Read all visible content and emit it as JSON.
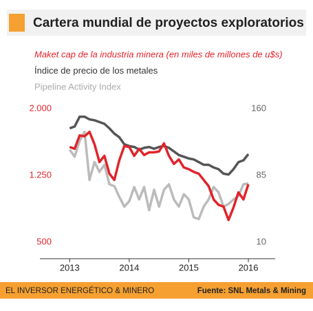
{
  "chart_data": {
    "type": "line",
    "title": "Cartera mundial de proyectos exploratorios",
    "footer_left": "EL INVERSOR ENERGÉTICO & MINERO",
    "footer_right": "Fuente: SNL Metals & Mining",
    "x": [
      2013,
      2013.083,
      2013.167,
      2013.25,
      2013.333,
      2013.417,
      2013.5,
      2013.583,
      2013.667,
      2013.75,
      2013.833,
      2013.917,
      2014,
      2014.083,
      2014.167,
      2014.25,
      2014.333,
      2014.417,
      2014.5,
      2014.583,
      2014.667,
      2014.75,
      2014.833,
      2014.917,
      2015,
      2015.083,
      2015.167,
      2015.25,
      2015.333,
      2015.417,
      2015.5,
      2015.583,
      2015.667,
      2015.75,
      2015.833,
      2015.917,
      2016
    ],
    "xlim": [
      2012.5,
      2016.45
    ],
    "xticks": [
      2013,
      2014,
      2015,
      2016
    ],
    "ylim": [
      500,
      2000
    ],
    "yticks": [
      500,
      {
        "value": 1250,
        "label": "1.250"
      },
      {
        "value": 2000,
        "label": "2.000"
      }
    ],
    "y2lim": [
      10,
      160
    ],
    "y2ticks": [
      10,
      85,
      160
    ],
    "series": [
      {
        "name": "Maket cap de la industria minera (en miles de millones de u$s)",
        "color": "#e0242b",
        "values": [
          1570,
          1550,
          1700,
          1690,
          1740,
          1600,
          1400,
          1470,
          1270,
          1200,
          1420,
          1580,
          1570,
          1470,
          1550,
          1480,
          1510,
          1510,
          1520,
          1610,
          1470,
          1380,
          1430,
          1340,
          1320,
          1290,
          1270,
          1200,
          1130,
          980,
          920,
          900,
          750,
          890,
          1060,
          980,
          1150
        ]
      },
      {
        "name": "Índice de precio de los metales",
        "color": "#555555",
        "axis": "y2",
        "values": [
          138,
          140,
          151,
          151,
          148,
          147,
          145,
          143,
          138,
          132,
          128,
          120,
          118,
          117,
          114,
          116,
          117,
          115,
          117,
          118,
          116,
          112,
          108,
          106,
          104,
          103,
          100,
          97,
          97,
          94,
          92,
          87,
          86,
          92,
          100,
          102,
          109
        ]
      },
      {
        "name": "Pipeline Activity Index",
        "color": "#bbbbbb",
        "axis": "y2",
        "values": [
          114,
          106,
          124,
          134,
          80,
          100,
          89,
          97,
          75,
          73,
          61,
          50,
          56,
          72,
          58,
          72,
          46,
          69,
          50,
          69,
          75,
          58,
          50,
          64,
          58,
          38,
          36,
          50,
          58,
          72,
          66,
          50,
          53,
          58,
          62,
          75,
          76
        ]
      }
    ]
  }
}
